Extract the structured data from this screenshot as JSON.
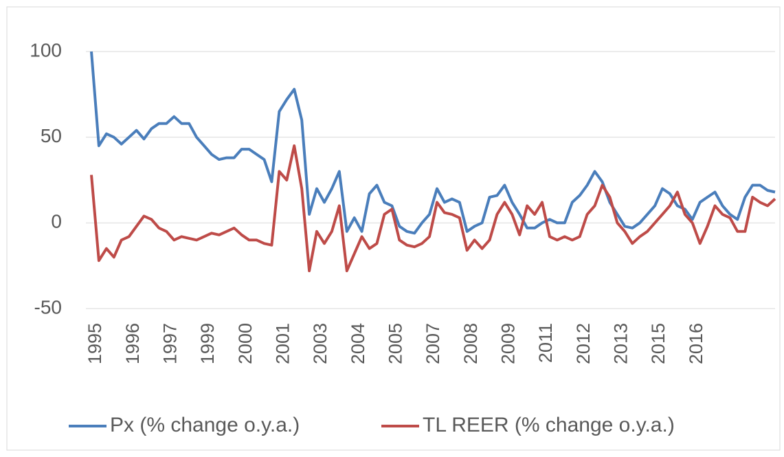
{
  "chart_data": {
    "type": "line",
    "categories": [
      "1995",
      null,
      null,
      null,
      null,
      "1996",
      null,
      null,
      null,
      null,
      "1997",
      null,
      null,
      null,
      null,
      "1999",
      null,
      null,
      null,
      null,
      "2000",
      null,
      null,
      null,
      null,
      "2001",
      null,
      null,
      null,
      null,
      "2003",
      null,
      null,
      null,
      null,
      "2004",
      null,
      null,
      null,
      null,
      "2005",
      null,
      null,
      null,
      null,
      "2007",
      null,
      null,
      null,
      null,
      "2008",
      null,
      null,
      null,
      null,
      "2009",
      null,
      null,
      null,
      null,
      "2011",
      null,
      null,
      null,
      null,
      "2012",
      null,
      null,
      null,
      null,
      "2013",
      null,
      null,
      null,
      null,
      "2015",
      null,
      null,
      null,
      null,
      "2016",
      null,
      null,
      null,
      null,
      null,
      null,
      null,
      null,
      null,
      null,
      null
    ],
    "series": [
      {
        "name": "Px (% change o.y.a.)",
        "color": "#4a7ebb",
        "values": [
          100,
          45,
          52,
          50,
          46,
          50,
          54,
          49,
          55,
          58,
          58,
          62,
          58,
          58,
          50,
          45,
          40,
          37,
          38,
          38,
          43,
          43,
          40,
          37,
          24,
          65,
          72,
          78,
          60,
          5,
          20,
          12,
          20,
          30,
          -5,
          3,
          -5,
          17,
          22,
          12,
          10,
          -2,
          -5,
          -6,
          0,
          5,
          20,
          12,
          14,
          12,
          -5,
          -2,
          0,
          15,
          16,
          22,
          12,
          5,
          -3,
          -3,
          0,
          2,
          0,
          0,
          12,
          16,
          22,
          30,
          24,
          12,
          5,
          -2,
          -3,
          0,
          5,
          10,
          20,
          17,
          10,
          8,
          2,
          12,
          15,
          18,
          10,
          5,
          2,
          15,
          22,
          22,
          19,
          18
        ]
      },
      {
        "name": "TL REER (% change o.y.a.)",
        "color": "#be4b48",
        "values": [
          28,
          -22,
          -15,
          -20,
          -10,
          -8,
          -2,
          4,
          2,
          -3,
          -5,
          -10,
          -8,
          -9,
          -10,
          -8,
          -6,
          -7,
          -5,
          -3,
          -7,
          -10,
          -10,
          -12,
          -13,
          30,
          25,
          45,
          20,
          -28,
          -5,
          -12,
          -5,
          10,
          -28,
          -18,
          -8,
          -15,
          -12,
          5,
          8,
          -10,
          -13,
          -14,
          -12,
          -8,
          12,
          6,
          5,
          3,
          -16,
          -10,
          -15,
          -10,
          5,
          12,
          5,
          -7,
          10,
          5,
          12,
          -8,
          -10,
          -8,
          -10,
          -8,
          5,
          10,
          22,
          15,
          0,
          -5,
          -12,
          -8,
          -5,
          0,
          5,
          10,
          18,
          5,
          0,
          -12,
          -2,
          10,
          5,
          3,
          -5,
          -5,
          15,
          12,
          10,
          14
        ]
      }
    ],
    "ylim": [
      -50,
      100
    ],
    "yticks": [
      -50,
      0,
      50,
      100
    ],
    "grid": true
  }
}
